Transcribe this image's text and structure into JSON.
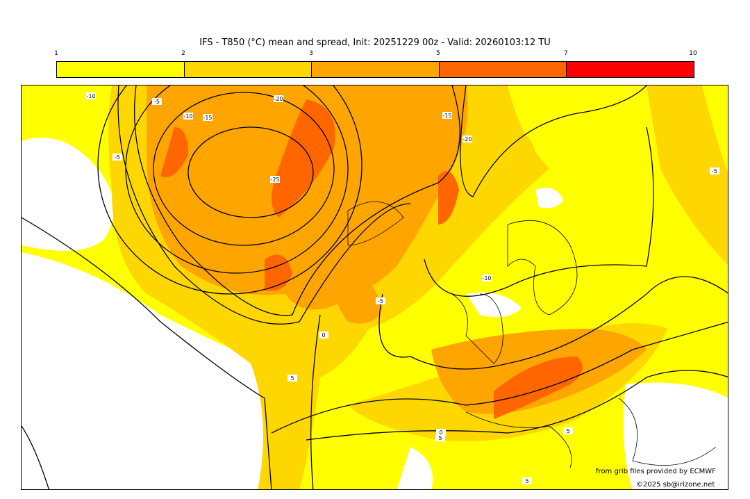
{
  "title": "IFS - T850 (°C) mean and spread, Init: 20251229 00z - Valid: 20260103:12 TU",
  "colorbar": {
    "ticks": [
      "1",
      "2",
      "3",
      "5",
      "7",
      "10"
    ],
    "colors": [
      "#ffff00",
      "#ffd700",
      "#ffa500",
      "#ff6600",
      "#ff0000"
    ]
  },
  "contour_labels": [
    "-10",
    "-5",
    "-10",
    "-15",
    "-20",
    "-25",
    "-15",
    "-20",
    "-5",
    "0",
    "5",
    "-10",
    "-5",
    "5",
    "0",
    "5",
    "5",
    "-5"
  ],
  "credits": {
    "source": "from grib files provided by ECMWF",
    "copyright": "©2025 sb@irizone.net"
  }
}
